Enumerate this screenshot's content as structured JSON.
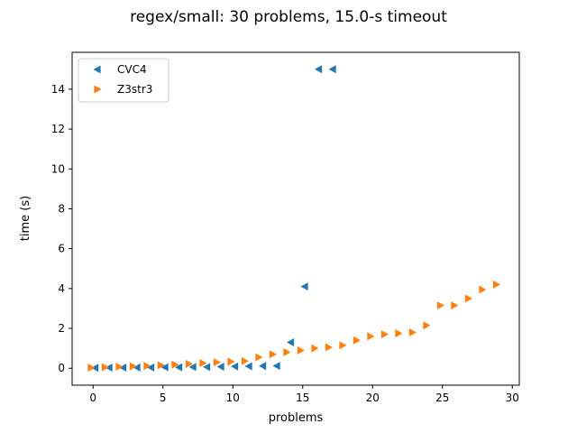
{
  "chart_data": {
    "type": "scatter",
    "title": "regex/small: 30 problems, 15.0-s timeout",
    "xlabel": "problems",
    "ylabel": "time (s)",
    "xlim": [
      -1.5,
      30.5
    ],
    "ylim": [
      -0.85,
      15.85
    ],
    "xticks": [
      0,
      5,
      10,
      15,
      20,
      25,
      30
    ],
    "yticks": [
      0,
      2,
      4,
      6,
      8,
      10,
      12,
      14
    ],
    "grid": false,
    "legend_position": "top-left",
    "series": [
      {
        "name": "CVC4",
        "marker": "triangle-left",
        "color": "#1f77b4",
        "x": [
          0,
          1,
          2,
          3,
          4,
          5,
          6,
          7,
          8,
          9,
          10,
          11,
          12,
          13,
          14,
          15,
          16,
          17
        ],
        "y": [
          0.02,
          0.03,
          0.03,
          0.04,
          0.04,
          0.05,
          0.05,
          0.06,
          0.06,
          0.08,
          0.09,
          0.1,
          0.11,
          0.12,
          1.3,
          4.1,
          15.0,
          15.0
        ]
      },
      {
        "name": "Z3str3",
        "marker": "triangle-right",
        "color": "#ff7f0e",
        "x": [
          0,
          1,
          2,
          3,
          4,
          5,
          6,
          7,
          8,
          9,
          10,
          11,
          12,
          13,
          14,
          15,
          16,
          17,
          18,
          19,
          20,
          21,
          22,
          23,
          24,
          25,
          26,
          27,
          28,
          29
        ],
        "y": [
          0.03,
          0.05,
          0.08,
          0.1,
          0.12,
          0.15,
          0.18,
          0.22,
          0.26,
          0.3,
          0.33,
          0.36,
          0.55,
          0.7,
          0.8,
          0.9,
          1.0,
          1.05,
          1.15,
          1.4,
          1.6,
          1.7,
          1.75,
          1.8,
          2.15,
          3.15,
          3.15,
          3.5,
          3.95,
          4.2
        ]
      }
    ]
  }
}
